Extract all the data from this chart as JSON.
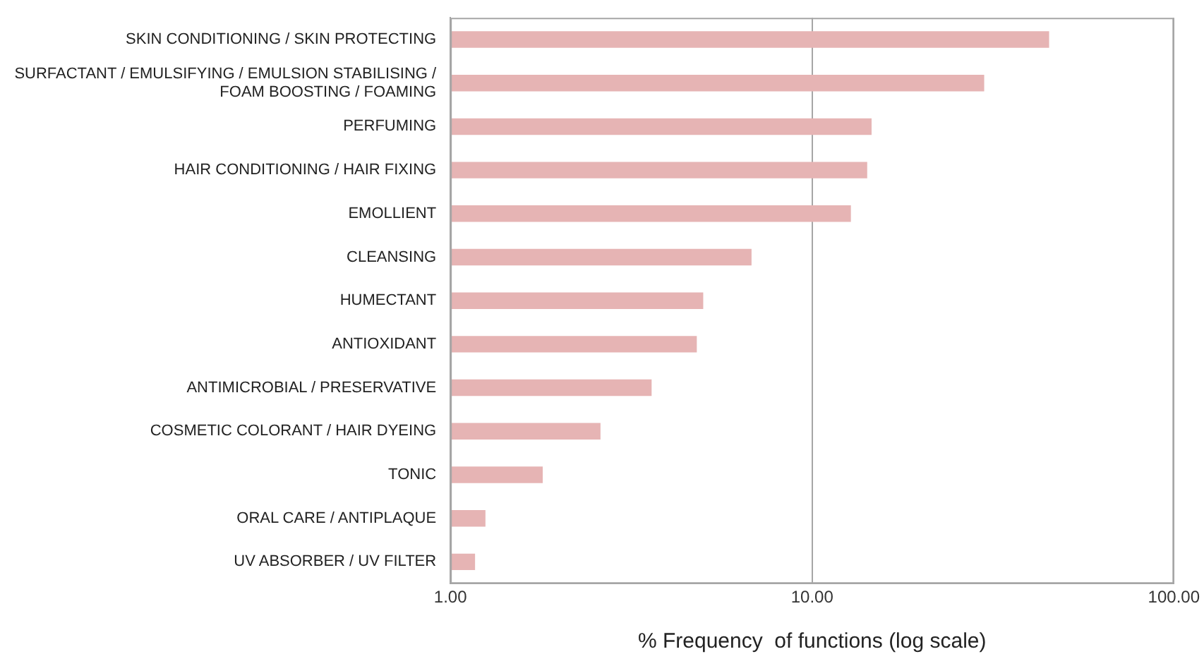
{
  "chart_data": {
    "type": "bar",
    "orientation": "horizontal",
    "log": "x",
    "xlabel": "% Frequency  of functions (log scale)",
    "categories": [
      "SKIN CONDITIONING / SKIN PROTECTING",
      "SURFACTANT / EMULSIFYING / EMULSION STABILISING / FOAM BOOSTING / FOAMING",
      "PERFUMING",
      "HAIR CONDITIONING / HAIR FIXING",
      "EMOLLIENT",
      "CLEANSING",
      "HUMECTANT",
      "ANTIOXIDANT",
      "ANTIMICROBIAL / PRESERVATIVE",
      "COSMETIC COLORANT / HAIR DYEING",
      "TONIC",
      "ORAL CARE / ANTIPLAQUE",
      "UV ABSORBER / UV FILTER"
    ],
    "values": [
      45.2,
      29.9,
      14.6,
      14.2,
      12.8,
      6.8,
      5.0,
      4.8,
      3.6,
      2.6,
      1.8,
      1.25,
      1.17
    ],
    "color": "#e6b4b4",
    "xlim": [
      1,
      100
    ],
    "xticks": [
      {
        "value": 1,
        "label": "1.00"
      },
      {
        "value": 10,
        "label": "10.00"
      },
      {
        "value": 100,
        "label": "100.00"
      }
    ],
    "grid": "x"
  }
}
